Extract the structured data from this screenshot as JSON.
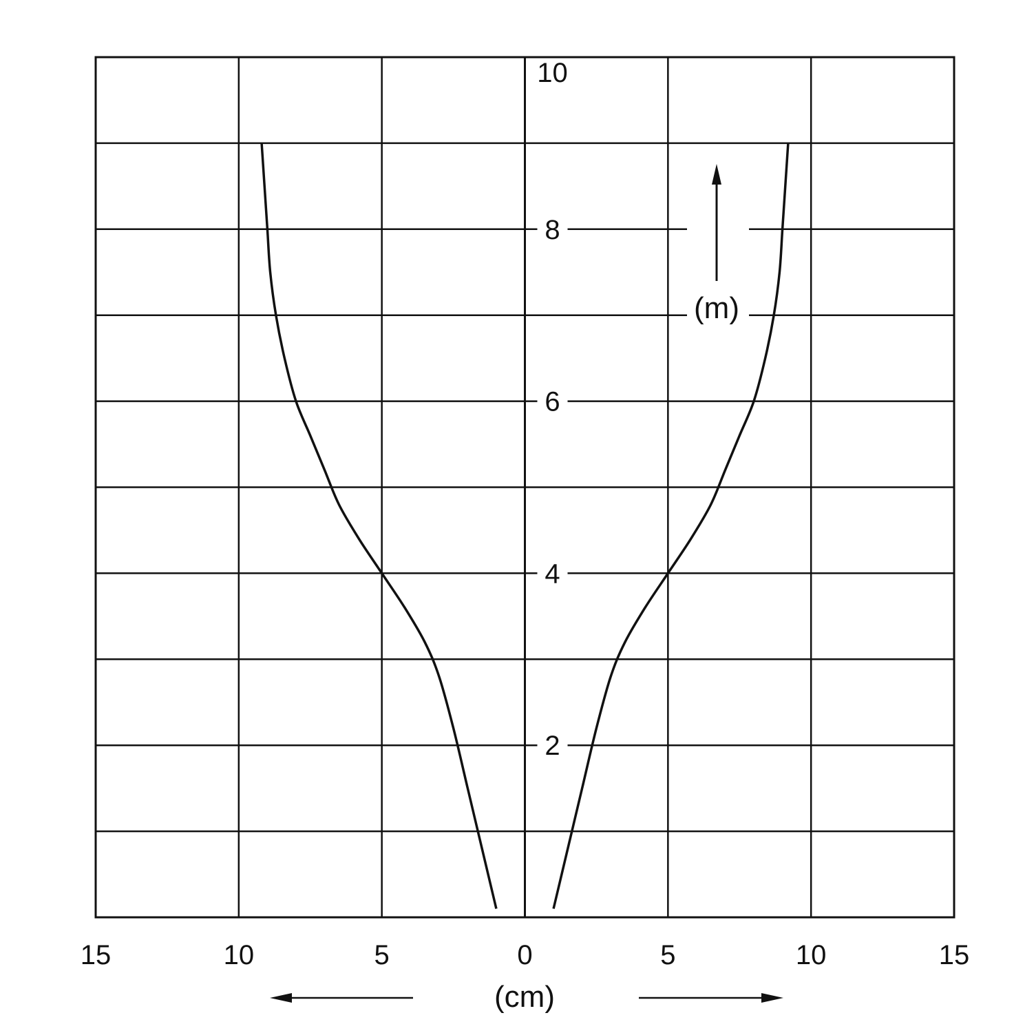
{
  "chart_data": {
    "type": "line",
    "title": "",
    "xlabel": "(cm)",
    "ylabel": "(m)",
    "xlim": [
      -15,
      15
    ],
    "ylim": [
      0,
      10
    ],
    "grid": true,
    "x_ticks": [
      {
        "value": -15,
        "label": "15"
      },
      {
        "value": -10,
        "label": "10"
      },
      {
        "value": -5,
        "label": "5"
      },
      {
        "value": 0,
        "label": "0"
      },
      {
        "value": 5,
        "label": "5"
      },
      {
        "value": 10,
        "label": "10"
      },
      {
        "value": 15,
        "label": "15"
      }
    ],
    "y_ticks": [
      {
        "value": 2,
        "label": "2"
      },
      {
        "value": 4,
        "label": "4"
      },
      {
        "value": 6,
        "label": "6"
      },
      {
        "value": 8,
        "label": "8"
      },
      {
        "value": 10,
        "label": "10"
      }
    ],
    "y_gridlines": [
      1,
      2,
      3,
      4,
      5,
      6,
      7,
      8,
      9
    ],
    "series": [
      {
        "side": "left",
        "x": [
          -1.0,
          -1.5,
          -2.0,
          -2.5,
          -3.0,
          -3.5,
          -4.2,
          -5.0,
          -5.8,
          -6.5,
          -7.0,
          -7.5,
          -8.0,
          -8.4,
          -8.7,
          -8.9,
          -9.0,
          -9.1,
          -9.2
        ],
        "y": [
          0.1,
          0.8,
          1.5,
          2.2,
          2.8,
          3.2,
          3.6,
          4.0,
          4.4,
          4.8,
          5.2,
          5.6,
          6.0,
          6.5,
          7.0,
          7.5,
          8.0,
          8.5,
          9.0
        ]
      },
      {
        "side": "right",
        "x": [
          1.0,
          1.5,
          2.0,
          2.5,
          3.0,
          3.5,
          4.2,
          5.0,
          5.8,
          6.5,
          7.0,
          7.5,
          8.0,
          8.4,
          8.7,
          8.9,
          9.0,
          9.1,
          9.2
        ],
        "y": [
          0.1,
          0.8,
          1.5,
          2.2,
          2.8,
          3.2,
          3.6,
          4.0,
          4.4,
          4.8,
          5.2,
          5.6,
          6.0,
          6.5,
          7.0,
          7.5,
          8.0,
          8.5,
          9.0
        ]
      }
    ]
  }
}
